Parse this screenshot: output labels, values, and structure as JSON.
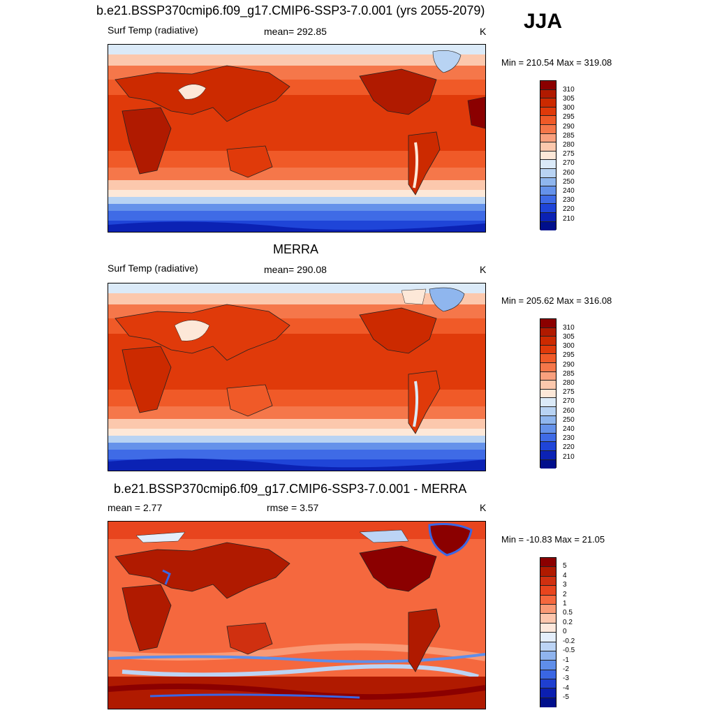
{
  "season": "JJA",
  "panels": [
    {
      "title": "b.e21.BSSP370cmip6.f09_g17.CMIP6-SSP3-7.0.001 (yrs 2055-2079)",
      "left_label": "Surf Temp (radiative)",
      "center_label": "mean= 292.85",
      "units": "K",
      "minmax": "Min = 210.54 Max = 319.08",
      "colorbar_labels": [
        "310",
        "305",
        "300",
        "295",
        "290",
        "285",
        "280",
        "275",
        "270",
        "260",
        "250",
        "240",
        "230",
        "220",
        "210"
      ]
    },
    {
      "title": "MERRA",
      "left_label": "Surf Temp (radiative)",
      "center_label": "mean= 290.08",
      "units": "K",
      "minmax": "Min = 205.62 Max = 316.08",
      "colorbar_labels": [
        "310",
        "305",
        "300",
        "295",
        "290",
        "285",
        "280",
        "275",
        "270",
        "260",
        "250",
        "240",
        "230",
        "220",
        "210"
      ]
    },
    {
      "title": "b.e21.BSSP370cmip6.f09_g17.CMIP6-SSP3-7.0.001 - MERRA",
      "left_label": "mean =   2.77",
      "center_label": "rmse =   3.57",
      "units": "K",
      "minmax": "Min = -10.83 Max =  21.05",
      "colorbar_labels": [
        "5",
        "4",
        "3",
        "2",
        "1",
        "0.5",
        "0.2",
        "0",
        "-0.2",
        "-0.5",
        "-1",
        "-2",
        "-3",
        "-4",
        "-5"
      ]
    }
  ],
  "colors": {
    "abs_scale": [
      "#8b0000",
      "#b01a00",
      "#cc2a00",
      "#e03a0a",
      "#f05a28",
      "#f5774a",
      "#f9a07e",
      "#fcc8ad",
      "#fde8d8",
      "#dbeaf8",
      "#b8d3f3",
      "#8fb6ee",
      "#6592ea",
      "#3f6be6",
      "#1f45d8",
      "#0b22b4",
      "#000f8c"
    ],
    "diff_scale": [
      "#8b0000",
      "#b01a00",
      "#d03010",
      "#e8451e",
      "#f5683e",
      "#f99a76",
      "#fcc6ad",
      "#fde8dc",
      "#e4eefb",
      "#bcd4f5",
      "#8fb4ee",
      "#5f8ee9",
      "#3a66e3",
      "#1f3fd0",
      "#0b1fb0",
      "#000f8c"
    ]
  }
}
